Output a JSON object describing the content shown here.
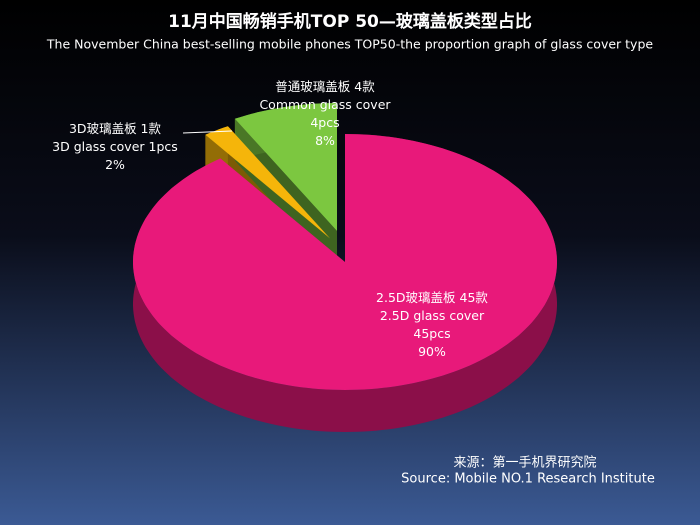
{
  "chart_data": {
    "type": "pie",
    "title": "11月中国畅销手机TOP 50—玻璃盖板类型占比",
    "subtitle": "The November China best-selling mobile phones TOP50-the proportion graph of glass cover type",
    "categories": [
      "2.5D玻璃盖板 45款",
      "3D玻璃盖板 1款",
      "普通玻璃盖板 4款"
    ],
    "english_names": [
      "2.5D glass cover",
      "3D glass cover",
      "Common glass cover"
    ],
    "counts": [
      45,
      1,
      4
    ],
    "count_labels": [
      "45pcs",
      "1pcs",
      "4pcs"
    ],
    "values": [
      90,
      2,
      8
    ],
    "value_labels": [
      "90%",
      "2%",
      "8%"
    ],
    "colors": [
      "#e8197a",
      "#f5b50a",
      "#7cc740"
    ],
    "source_cn": "来源：第一手机界研究院",
    "source": "Source: Mobile NO.1 Research Institute"
  }
}
